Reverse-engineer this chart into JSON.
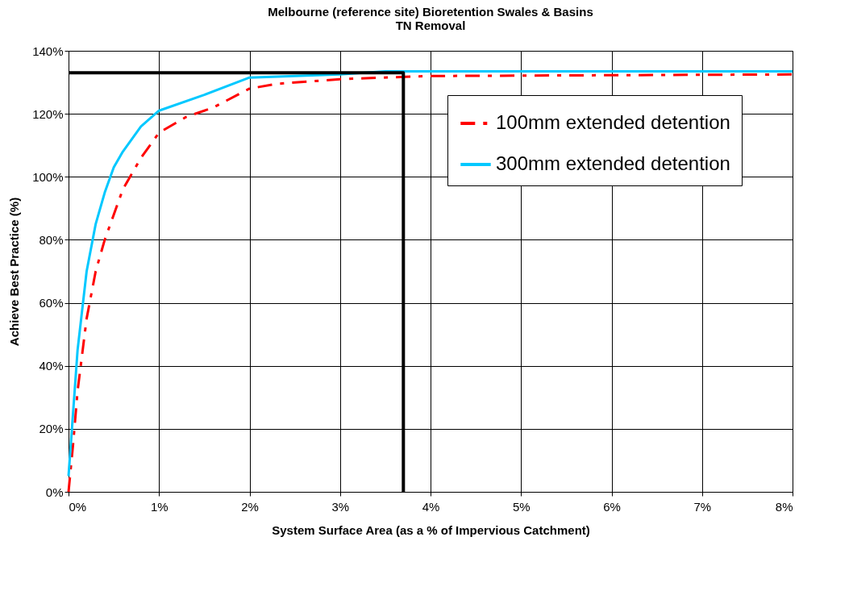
{
  "chart_data": {
    "type": "line",
    "title": [
      "Melbourne (reference site) Bioretention Swales & Basins",
      "TN Removal"
    ],
    "xlabel": "System Surface Area (as a % of Impervious Catchment)",
    "ylabel": "Achieve Best Practice (%)",
    "series": [
      {
        "name": "100mm extended detention",
        "color": "#ff0000",
        "line_style": "dashed",
        "x": [
          0,
          0.05,
          0.1,
          0.2,
          0.3,
          0.4,
          0.5,
          0.6,
          0.8,
          1.0,
          1.3,
          1.6,
          2.0,
          2.3,
          3.0,
          4.0,
          8.0
        ],
        "values": [
          0,
          15,
          32,
          55,
          70,
          80,
          88,
          96,
          106,
          114,
          119,
          122,
          128,
          129.5,
          131,
          132,
          132.5
        ]
      },
      {
        "name": "300mm extended detention",
        "color": "#00c8ff",
        "line_style": "solid",
        "x": [
          0,
          0.05,
          0.1,
          0.2,
          0.3,
          0.4,
          0.5,
          0.6,
          0.8,
          1.0,
          1.5,
          2.0,
          2.5,
          3.0,
          3.5,
          8.0
        ],
        "values": [
          5,
          25,
          45,
          70,
          85,
          95,
          103,
          108,
          116,
          121,
          126,
          131.5,
          132,
          132.5,
          133.5,
          133.5
        ]
      },
      {
        "color": "#000000",
        "line_style": "solid",
        "x": [
          0,
          3.7,
          3.7
        ],
        "values": [
          133,
          133,
          0
        ]
      }
    ],
    "xlim": [
      0,
      8
    ],
    "xticks": [
      {
        "value": 0,
        "label": "0%"
      },
      {
        "value": 1,
        "label": "1%"
      },
      {
        "value": 2,
        "label": "2%"
      },
      {
        "value": 3,
        "label": "3%"
      },
      {
        "value": 4,
        "label": "4%"
      },
      {
        "value": 5,
        "label": "5%"
      },
      {
        "value": 6,
        "label": "6%"
      },
      {
        "value": 7,
        "label": "7%"
      },
      {
        "value": 8,
        "label": "8%"
      }
    ],
    "ylim": [
      0,
      140
    ],
    "yticks": [
      {
        "value": 0,
        "label": "0%"
      },
      {
        "value": 20,
        "label": "20%"
      },
      {
        "value": 40,
        "label": "40%"
      },
      {
        "value": 60,
        "label": "60%"
      },
      {
        "value": 80,
        "label": "80%"
      },
      {
        "value": 100,
        "label": "100%"
      },
      {
        "value": 120,
        "label": "120%"
      },
      {
        "value": 140,
        "label": "140%"
      }
    ],
    "grid": true,
    "legend": "top right",
    "marker": "none"
  }
}
